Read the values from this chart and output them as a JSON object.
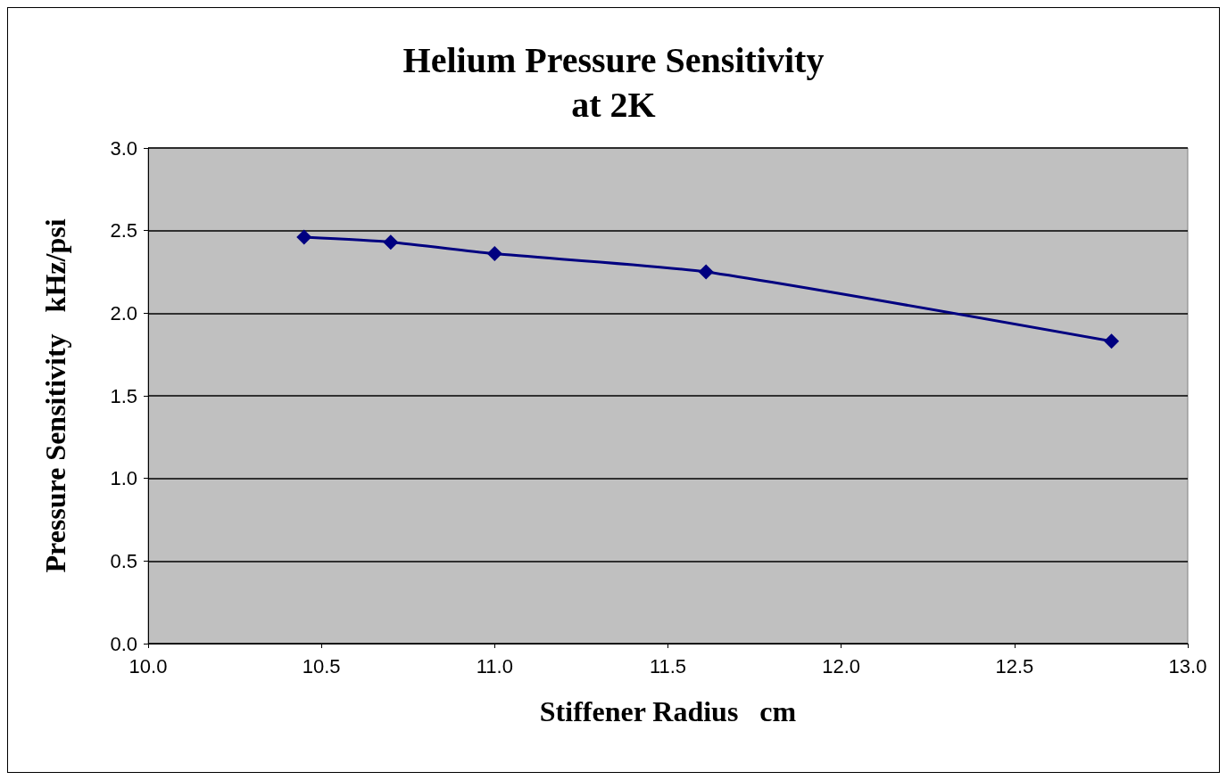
{
  "chart_data": {
    "type": "line",
    "title": "Helium Pressure Sensitivity\nat 2K",
    "xlabel": "Stiffener Radius   cm",
    "ylabel": "Pressure Sensitivity   kHz/psi",
    "x": [
      10.45,
      10.7,
      11.0,
      11.61,
      12.78
    ],
    "series": [
      {
        "color": "#000080",
        "values": [
          2.46,
          2.43,
          2.36,
          2.25,
          1.83
        ]
      }
    ],
    "xlim": [
      10.0,
      13.0
    ],
    "xticks": [
      {
        "value": 10,
        "label": "10.0"
      },
      {
        "value": 10.5,
        "label": "10.5"
      },
      {
        "value": 11,
        "label": "11.0"
      },
      {
        "value": 11.5,
        "label": "11.5"
      },
      {
        "value": 12,
        "label": "12.0"
      },
      {
        "value": 12.5,
        "label": "12.5"
      },
      {
        "value": 13,
        "label": "13.0"
      }
    ],
    "ylim": [
      0,
      3.0
    ],
    "yticks": [
      {
        "value": 0,
        "label": "0.0"
      },
      {
        "value": 0.5,
        "label": "0.5"
      },
      {
        "value": 1,
        "label": "1.0"
      },
      {
        "value": 1.5,
        "label": "1.5"
      },
      {
        "value": 2,
        "label": "2.0"
      },
      {
        "value": 2.5,
        "label": "2.5"
      },
      {
        "value": 3,
        "label": "3.0"
      }
    ],
    "grid": "y",
    "marker": "diamond",
    "line_style": "solid"
  }
}
